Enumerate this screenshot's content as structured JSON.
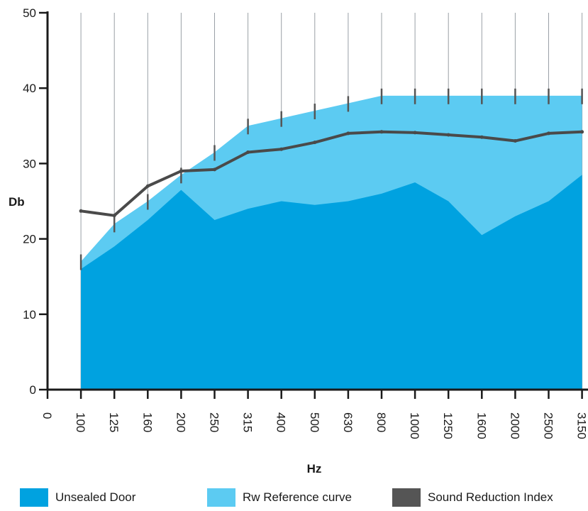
{
  "chart_data": {
    "type": "area",
    "ylabel": "Db",
    "xlabel": "Hz",
    "ylim": [
      0,
      50
    ],
    "yticks": [
      0,
      10,
      20,
      30,
      40,
      50
    ],
    "categories": [
      "0",
      "100",
      "125",
      "160",
      "200",
      "250",
      "315",
      "400",
      "500",
      "630",
      "800",
      "1000",
      "1250",
      "1600",
      "2000",
      "2500",
      "3150"
    ],
    "grid": "vertical lines at each frequency",
    "legend_placement": "bottom",
    "series": [
      {
        "name": "Unsealed Door",
        "kind": "area",
        "color": "#00a2e0",
        "x": [
          "100",
          "125",
          "160",
          "200",
          "250",
          "315",
          "400",
          "500",
          "630",
          "800",
          "1000",
          "1250",
          "1600",
          "2000",
          "2500",
          "3150"
        ],
        "values": [
          16,
          19,
          22.5,
          26.5,
          22.5,
          24,
          25,
          24.5,
          25,
          26,
          27.5,
          25,
          20.5,
          23,
          25,
          28.5
        ]
      },
      {
        "name": "Rw Reference curve",
        "kind": "area",
        "color": "#5ccbf2",
        "x": [
          "100",
          "125",
          "160",
          "200",
          "250",
          "315",
          "400",
          "500",
          "630",
          "800",
          "1000",
          "1250",
          "1600",
          "2000",
          "2500",
          "3150"
        ],
        "values": [
          17,
          22,
          25,
          28.5,
          31.5,
          35,
          36,
          37,
          38,
          39,
          39,
          39,
          39,
          39,
          39,
          39
        ]
      },
      {
        "name": "Sound Reduction Index",
        "kind": "line",
        "color": "#4a4a4a",
        "x": [
          "100",
          "125",
          "160",
          "200",
          "250",
          "315",
          "400",
          "500",
          "630",
          "800",
          "1000",
          "1250",
          "1600",
          "2000",
          "2500",
          "3150"
        ],
        "values": [
          23.7,
          23.1,
          27,
          29,
          29.2,
          31.5,
          31.9,
          32.8,
          34,
          34.2,
          34.1,
          33.8,
          33.5,
          33,
          34,
          34.2
        ]
      }
    ]
  },
  "legend": [
    {
      "label": "Unsealed Door",
      "color": "#00a2e0"
    },
    {
      "label": "Rw Reference curve",
      "color": "#5ccbf2"
    },
    {
      "label": "Sound Reduction Index",
      "color": "#555555"
    }
  ],
  "colors": {
    "axis": "#1a1a1a",
    "grid": "#9aa0a6",
    "tick_marks": "#555555"
  }
}
